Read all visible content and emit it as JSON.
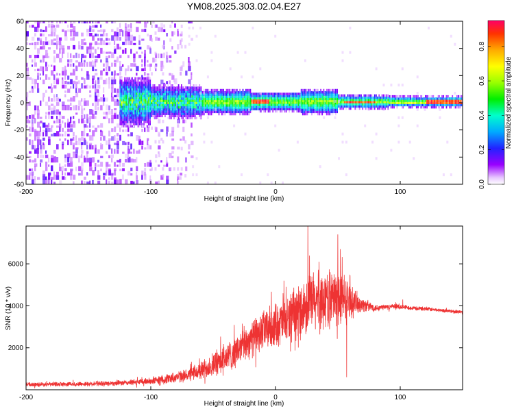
{
  "title": "YM08.2025.303.02.04.E27",
  "chart_data": [
    {
      "type": "heatmap",
      "name": "spectrogram",
      "xlabel": "Height of straight line (km)",
      "ylabel": "Frequency (Hz)",
      "xlim": [
        -200,
        150
      ],
      "ylim": [
        -60,
        60
      ],
      "xticks": [
        -200,
        -100,
        0,
        100
      ],
      "xtick_labels": [
        "-200",
        "-100",
        "0",
        "100"
      ],
      "yticks": [
        -60,
        -40,
        -20,
        0,
        20,
        40,
        60
      ],
      "ytick_labels": [
        "-60",
        "-40",
        "-20",
        "0",
        "20",
        "40",
        "60"
      ],
      "colorbar": {
        "label": "Normalized spectral amplitude",
        "range": [
          0,
          0.95
        ],
        "ticks": [
          0,
          0.2,
          0.4,
          0.6,
          0.8
        ],
        "tick_labels": [
          "0.0",
          "0.2",
          "0.4",
          "0.6",
          "0.8"
        ]
      },
      "features": {
        "noise_region_x": [
          -200,
          -70
        ],
        "signal_band_center_hz": 0,
        "signal_start_x": -125,
        "peak_segments_x": [
          [
            -20,
            -5
          ],
          [
            55,
            80
          ],
          [
            120,
            150
          ]
        ]
      }
    },
    {
      "type": "line",
      "name": "snr",
      "xlabel": "Height of straight line (km)",
      "ylabel": "SNR (10 * v/v)",
      "xlim": [
        -200,
        150
      ],
      "ylim": [
        0,
        7800
      ],
      "xticks": [
        -200,
        -100,
        0,
        100
      ],
      "xtick_labels": [
        "-200",
        "-100",
        "0",
        "100"
      ],
      "yticks": [
        2000,
        4000,
        6000
      ],
      "ytick_labels": [
        "2000",
        "4000",
        "6000"
      ],
      "color": "#ee3333",
      "envelope": {
        "x": [
          -200,
          -150,
          -120,
          -100,
          -90,
          -80,
          -70,
          -60,
          -50,
          -40,
          -30,
          -20,
          -10,
          0,
          10,
          20,
          30,
          40,
          50,
          55,
          60,
          70,
          80,
          90,
          100,
          110,
          120,
          130,
          140,
          150
        ],
        "mean": [
          250,
          280,
          330,
          420,
          500,
          600,
          700,
          900,
          1200,
          1500,
          1900,
          2400,
          2800,
          3100,
          3300,
          3800,
          4200,
          4300,
          4400,
          4300,
          4200,
          4050,
          3900,
          3950,
          3950,
          3900,
          3850,
          3800,
          3750,
          3700
        ],
        "amplitude": [
          120,
          130,
          150,
          200,
          260,
          300,
          350,
          500,
          700,
          800,
          900,
          1000,
          1100,
          1200,
          1300,
          1500,
          1700,
          1600,
          1600,
          1500,
          900,
          400,
          200,
          150,
          150,
          120,
          120,
          100,
          100,
          100
        ]
      },
      "spikes": [
        {
          "x": 6,
          "y": 4600
        },
        {
          "x": 26,
          "y": 7800
        },
        {
          "x": 35,
          "y": 6100
        },
        {
          "x": 50,
          "y": 7400
        },
        {
          "x": 52,
          "y": 6700
        },
        {
          "x": 57,
          "y": 600
        },
        {
          "x": 102,
          "y": 4300
        }
      ]
    }
  ]
}
